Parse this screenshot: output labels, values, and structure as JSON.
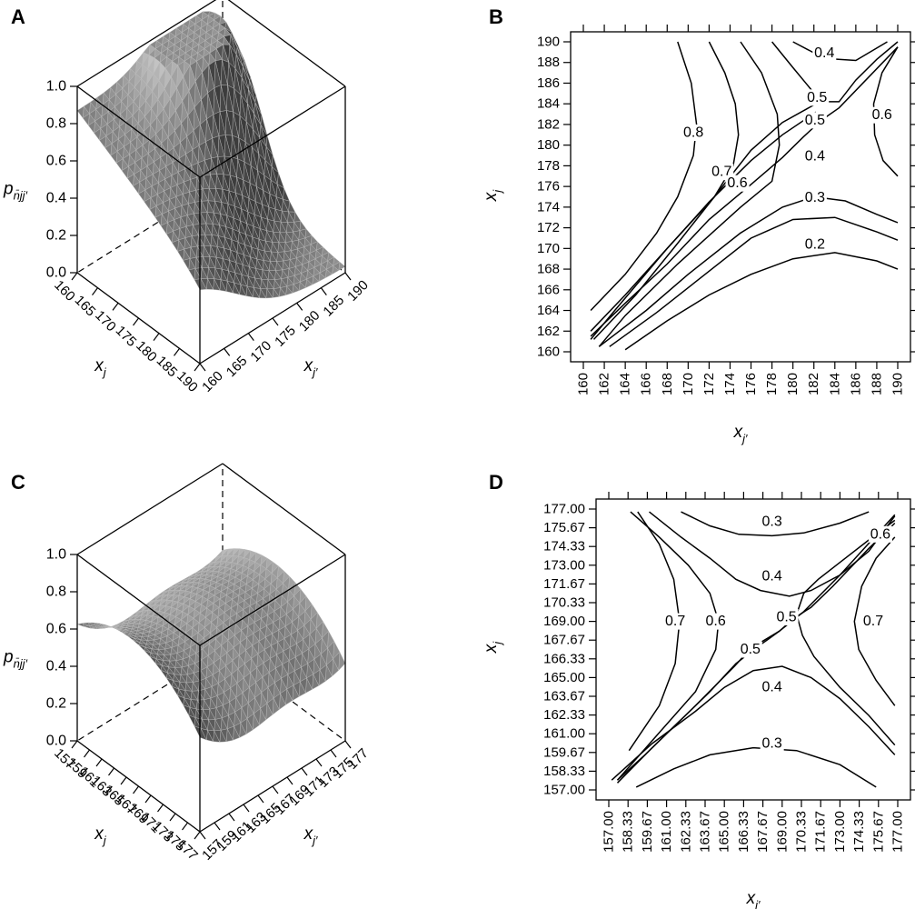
{
  "panels": {
    "A": {
      "letter": "A"
    },
    "B": {
      "letter": "B"
    },
    "C": {
      "letter": "C"
    },
    "D": {
      "letter": "D"
    }
  },
  "chart_data": [
    {
      "id": "A",
      "type": "surface3d",
      "zlabel": "p_{n̄jj'}",
      "xlabel": "x_{j'}",
      "ylabel": "x_j",
      "zlim": [
        0,
        1
      ],
      "z_ticks": [
        "0.0",
        "0.2",
        "0.4",
        "0.6",
        "0.8",
        "1.0"
      ],
      "x_ticks": [
        "160",
        "165",
        "170",
        "175",
        "180",
        "185",
        "190"
      ],
      "y_ticks": [
        "160",
        "165",
        "170",
        "175",
        "180",
        "185",
        "190"
      ],
      "surface_color": "#8c8c8c"
    },
    {
      "id": "B",
      "type": "contour",
      "xlabel": "x_{j'}",
      "ylabel": "x_j",
      "xlim": [
        160,
        190
      ],
      "ylim": [
        160,
        190
      ],
      "x_ticks": [
        "160",
        "162",
        "164",
        "166",
        "168",
        "170",
        "172",
        "174",
        "176",
        "178",
        "180",
        "182",
        "184",
        "186",
        "188",
        "190"
      ],
      "y_ticks": [
        "160",
        "162",
        "164",
        "166",
        "168",
        "170",
        "172",
        "174",
        "176",
        "178",
        "180",
        "182",
        "184",
        "186",
        "188",
        "190"
      ],
      "contour_labels": [
        {
          "text": "0.8",
          "x": 170.5,
          "y": 181.2
        },
        {
          "text": "0.7",
          "x": 173.2,
          "y": 177.4
        },
        {
          "text": "0.6",
          "x": 174.7,
          "y": 176.3
        },
        {
          "text": "0.6",
          "x": 188.5,
          "y": 182.9
        },
        {
          "text": "0.5",
          "x": 182.3,
          "y": 184.6
        },
        {
          "text": "0.5",
          "x": 182.1,
          "y": 182.4
        },
        {
          "text": "0.4",
          "x": 183.0,
          "y": 188.9
        },
        {
          "text": "0.4",
          "x": 182.1,
          "y": 178.9
        },
        {
          "text": "0.3",
          "x": 182.1,
          "y": 174.9
        },
        {
          "text": "0.2",
          "x": 182.1,
          "y": 170.4
        }
      ]
    },
    {
      "id": "C",
      "type": "surface3d",
      "zlabel": "p_{n̄jj'}",
      "xlabel": "x_{j'}",
      "ylabel": "x_j",
      "zlim": [
        0,
        1
      ],
      "z_ticks": [
        "0.0",
        "0.2",
        "0.4",
        "0.6",
        "0.8",
        "1.0"
      ],
      "x_ticks": [
        "157",
        "159",
        "161",
        "163",
        "165",
        "167",
        "169",
        "171",
        "173",
        "175",
        "177"
      ],
      "y_ticks": [
        "157",
        "159",
        "161",
        "163",
        "165",
        "167",
        "169",
        "171",
        "173",
        "175",
        "177"
      ],
      "surface_color": "#8c8c8c"
    },
    {
      "id": "D",
      "type": "contour",
      "xlabel": "x_{j'}",
      "ylabel": "x_j",
      "xlim": [
        157,
        177
      ],
      "ylim": [
        157,
        177
      ],
      "x_ticks": [
        "157.00",
        "158.33",
        "159.67",
        "161.00",
        "162.33",
        "163.67",
        "165.00",
        "166.33",
        "167.67",
        "169.00",
        "170.33",
        "171.67",
        "173.00",
        "174.33",
        "175.67",
        "177.00"
      ],
      "y_ticks": [
        "157.00",
        "158.33",
        "159.67",
        "161.00",
        "162.33",
        "163.67",
        "165.00",
        "166.33",
        "167.67",
        "169.00",
        "170.33",
        "171.67",
        "173.00",
        "174.33",
        "175.67",
        "177.00"
      ],
      "contour_labels": [
        {
          "text": "0.3",
          "x": 168.3,
          "y": 176.1
        },
        {
          "text": "0.4",
          "x": 168.3,
          "y": 172.2
        },
        {
          "text": "0.6",
          "x": 175.8,
          "y": 175.2
        },
        {
          "text": "0.5",
          "x": 169.3,
          "y": 169.3
        },
        {
          "text": "0.5",
          "x": 166.8,
          "y": 167.0
        },
        {
          "text": "0.7",
          "x": 161.6,
          "y": 169.0
        },
        {
          "text": "0.6",
          "x": 164.4,
          "y": 169.0
        },
        {
          "text": "0.7",
          "x": 175.3,
          "y": 169.0
        },
        {
          "text": "0.4",
          "x": 168.3,
          "y": 164.3
        },
        {
          "text": "0.3",
          "x": 168.3,
          "y": 160.3
        }
      ]
    }
  ]
}
